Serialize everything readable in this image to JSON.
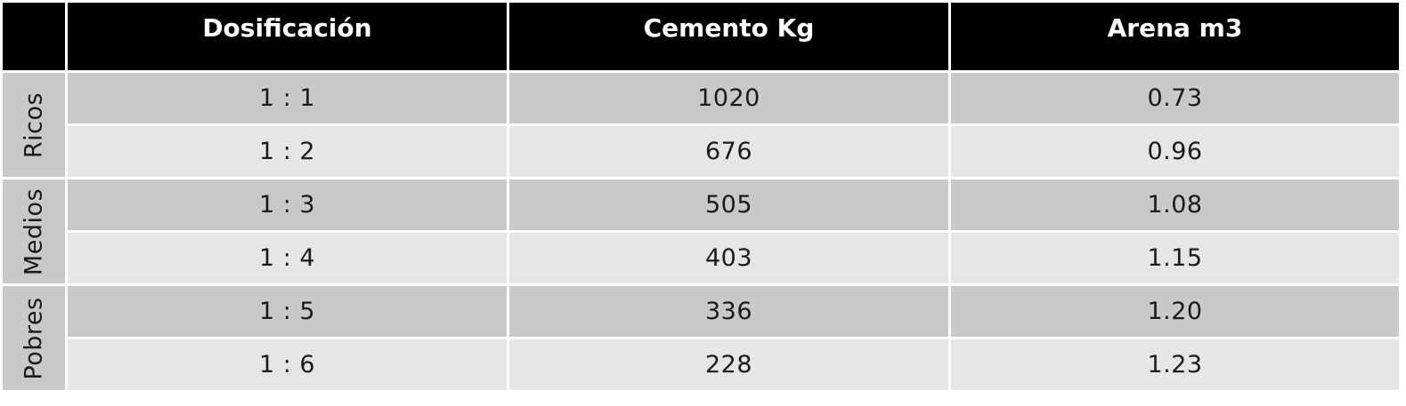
{
  "header": {
    "corner": "",
    "columns": [
      "Dosificación",
      "Cemento Kg",
      "Arena m3"
    ]
  },
  "groups": [
    {
      "label": "Ricos",
      "rows": [
        {
          "dosificacion": "1 : 1",
          "cemento": "1020",
          "arena": "0.73"
        },
        {
          "dosificacion": "1 : 2",
          "cemento": "676",
          "arena": "0.96"
        }
      ]
    },
    {
      "label": "Medios",
      "rows": [
        {
          "dosificacion": "1 : 3",
          "cemento": "505",
          "arena": "1.08"
        },
        {
          "dosificacion": "1 : 4",
          "cemento": "403",
          "arena": "1.15"
        }
      ]
    },
    {
      "label": "Pobres",
      "rows": [
        {
          "dosificacion": "1 : 5",
          "cemento": "336",
          "arena": "1.20"
        },
        {
          "dosificacion": "1 : 6",
          "cemento": "228",
          "arena": "1.23"
        }
      ]
    }
  ],
  "colors": {
    "header_bg": "#000000",
    "header_text": "#ffffff",
    "row_dark": "#c9c9c9",
    "row_light": "#e6e6e6"
  }
}
